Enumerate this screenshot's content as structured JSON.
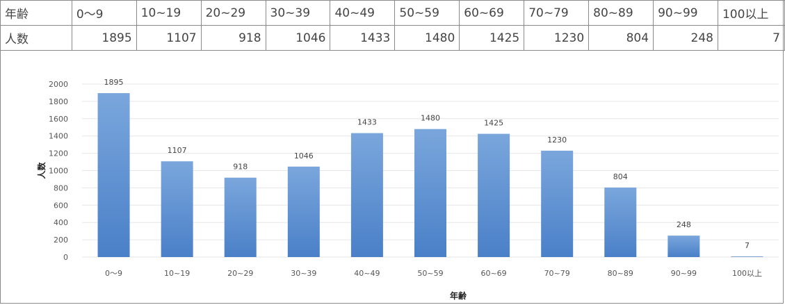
{
  "table": {
    "row1_header": "年齢",
    "row2_header": "人数",
    "age_groups": [
      "0～9",
      "10~19",
      "20~29",
      "30~39",
      "40~49",
      "50~59",
      "60~69",
      "70~79",
      "80~89",
      "90~99",
      "100以上"
    ],
    "counts": [
      "1895",
      "1107",
      "918",
      "1046",
      "1433",
      "1480",
      "1425",
      "1230",
      "804",
      "248",
      "7"
    ]
  },
  "chart_data": {
    "type": "bar",
    "categories": [
      "0～9",
      "10~19",
      "20~29",
      "30~39",
      "40~49",
      "50~59",
      "60~69",
      "70~79",
      "80~89",
      "90~99",
      "100以上"
    ],
    "values": [
      1895,
      1107,
      918,
      1046,
      1433,
      1480,
      1425,
      1230,
      804,
      248,
      7
    ],
    "xlabel": "年齢",
    "ylabel": "人数",
    "ylim": [
      0,
      2000
    ],
    "yticks": [
      0,
      200,
      400,
      600,
      800,
      1000,
      1200,
      1400,
      1600,
      1800,
      2000
    ],
    "grid": true,
    "bar_color": "#4a80c8",
    "bar_color_light": "#7aa6dc"
  }
}
